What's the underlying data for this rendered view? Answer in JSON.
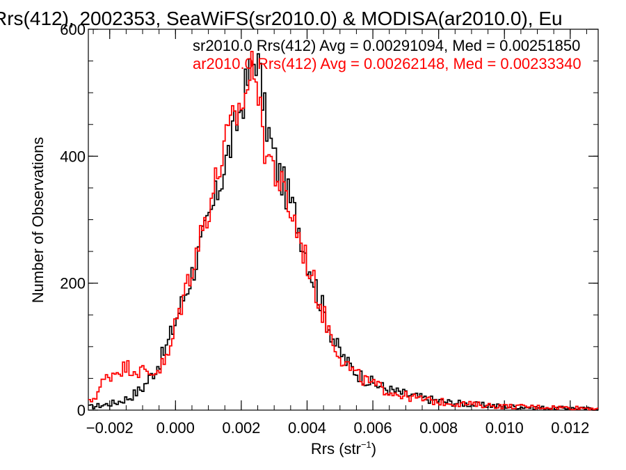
{
  "chart_data": {
    "type": "line",
    "title": "Rrs(412), 2002353, SeaWiFS(sr2010.0) & MODISA(ar2010.0), Eu",
    "xlabel": "Rrs (str",
    "xlabel_sup": "−1",
    "xlabel_close": ")",
    "ylabel": "Number of Observations",
    "xlim": [
      -0.00265,
      0.01285
    ],
    "ylim": [
      0,
      600
    ],
    "xticks": [
      -0.002,
      0.0,
      0.002,
      0.004,
      0.006,
      0.008,
      0.01,
      0.012
    ],
    "xtick_labels": [
      "−0.002",
      "0.000",
      "0.002",
      "0.004",
      "0.006",
      "0.008",
      "0.010",
      "0.012"
    ],
    "yticks": [
      0,
      200,
      400,
      600
    ],
    "ytick_labels": [
      "0",
      "200",
      "400",
      "600"
    ],
    "grid": false,
    "legend_position": "top-right",
    "series": [
      {
        "name": "sr2010.0 Rrs(412) Avg = 0.00291094, Med = 0.00251850",
        "color": "#000000",
        "points": [
          [
            -0.0026,
            5
          ],
          [
            -0.0022,
            8
          ],
          [
            -0.0018,
            12
          ],
          [
            -0.0014,
            20
          ],
          [
            -0.001,
            35
          ],
          [
            -0.0006,
            65
          ],
          [
            -0.0003,
            95
          ],
          [
            0.0,
            140
          ],
          [
            0.0003,
            185
          ],
          [
            0.0006,
            230
          ],
          [
            0.0009,
            280
          ],
          [
            0.0012,
            330
          ],
          [
            0.0015,
            385
          ],
          [
            0.0018,
            440
          ],
          [
            0.002,
            480
          ],
          [
            0.0022,
            520
          ],
          [
            0.00235,
            545
          ],
          [
            0.00245,
            560
          ],
          [
            0.00255,
            535
          ],
          [
            0.0027,
            470
          ],
          [
            0.0029,
            420
          ],
          [
            0.0031,
            380
          ],
          [
            0.0034,
            340
          ],
          [
            0.0037,
            300
          ],
          [
            0.004,
            240
          ],
          [
            0.0043,
            190
          ],
          [
            0.0046,
            140
          ],
          [
            0.0049,
            100
          ],
          [
            0.0052,
            75
          ],
          [
            0.0056,
            55
          ],
          [
            0.006,
            42
          ],
          [
            0.0065,
            32
          ],
          [
            0.007,
            25
          ],
          [
            0.0076,
            18
          ],
          [
            0.0082,
            13
          ],
          [
            0.009,
            9
          ],
          [
            0.01,
            6
          ],
          [
            0.011,
            4
          ],
          [
            0.012,
            3
          ],
          [
            0.0128,
            2
          ]
        ]
      },
      {
        "name": "ar2010.0 Rrs(412) Avg = 0.00262148, Med = 0.00233340",
        "color": "#ff0000",
        "points": [
          [
            -0.0026,
            12
          ],
          [
            -0.0024,
            25
          ],
          [
            -0.0022,
            45
          ],
          [
            -0.002,
            55
          ],
          [
            -0.0017,
            65
          ],
          [
            -0.0014,
            68
          ],
          [
            -0.0011,
            62
          ],
          [
            -0.0008,
            58
          ],
          [
            -0.0005,
            65
          ],
          [
            -0.0002,
            85
          ],
          [
            0.0,
            135
          ],
          [
            0.0003,
            190
          ],
          [
            0.0006,
            245
          ],
          [
            0.0009,
            300
          ],
          [
            0.0012,
            355
          ],
          [
            0.0015,
            415
          ],
          [
            0.0018,
            460
          ],
          [
            0.002,
            480
          ],
          [
            0.0022,
            510
          ],
          [
            0.00235,
            545
          ],
          [
            0.00245,
            550
          ],
          [
            0.00255,
            470
          ],
          [
            0.0027,
            420
          ],
          [
            0.003,
            380
          ],
          [
            0.0033,
            340
          ],
          [
            0.0036,
            300
          ],
          [
            0.0039,
            250
          ],
          [
            0.0042,
            200
          ],
          [
            0.0045,
            150
          ],
          [
            0.0048,
            110
          ],
          [
            0.0051,
            78
          ],
          [
            0.0055,
            55
          ],
          [
            0.006,
            40
          ],
          [
            0.0065,
            30
          ],
          [
            0.007,
            22
          ],
          [
            0.0076,
            16
          ],
          [
            0.0082,
            12
          ],
          [
            0.009,
            9
          ],
          [
            0.01,
            6
          ],
          [
            0.011,
            5
          ],
          [
            0.012,
            4
          ],
          [
            0.0128,
            3
          ]
        ]
      }
    ]
  }
}
